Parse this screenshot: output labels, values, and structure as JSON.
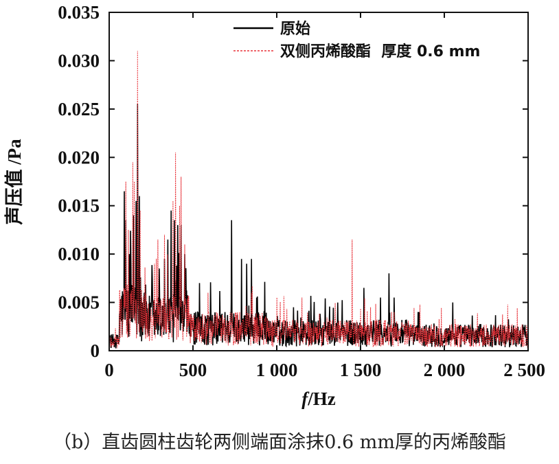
{
  "caption": "（b）直齿圆柱齿轮两侧端面涂抹0.6 mm厚的丙烯酸酯",
  "chart_data": {
    "type": "line",
    "xlabel_italic": "f",
    "xlabel_rest": "/Hz",
    "ylabel": "声压值 /Pa",
    "xlim": [
      0,
      2500
    ],
    "ylim": [
      0,
      0.035
    ],
    "x_ticks": [
      0,
      500,
      1000,
      1500,
      2000,
      2500
    ],
    "x_tick_labels": [
      "0",
      "500",
      "1 000",
      "1 500",
      "2 000",
      "2 500"
    ],
    "y_ticks": [
      0,
      0.005,
      0.01,
      0.015,
      0.02,
      0.025,
      0.03,
      0.035
    ],
    "y_tick_labels": [
      "0",
      "0.005",
      "0.010",
      "0.015",
      "0.020",
      "0.025",
      "0.030",
      "0.035"
    ],
    "legend_position": "top-right",
    "series": [
      {
        "name": "原始",
        "color": "#000000",
        "style": "solid",
        "peaks": [
          [
            90,
            0.0165
          ],
          [
            100,
            0.0135
          ],
          [
            120,
            0.01
          ],
          [
            145,
            0.014
          ],
          [
            160,
            0.0155
          ],
          [
            170,
            0.0255
          ],
          [
            180,
            0.016
          ],
          [
            210,
            0.006
          ],
          [
            300,
            0.0085
          ],
          [
            330,
            0.0095
          ],
          [
            350,
            0.0115
          ],
          [
            370,
            0.0145
          ],
          [
            390,
            0.0135
          ],
          [
            410,
            0.013
          ],
          [
            430,
            0.013
          ],
          [
            450,
            0.01
          ],
          [
            540,
            0.007
          ],
          [
            690,
            0.004
          ],
          [
            730,
            0.0135
          ],
          [
            790,
            0.0095
          ],
          [
            820,
            0.009
          ],
          [
            850,
            0.0095
          ],
          [
            880,
            0.0055
          ],
          [
            1100,
            0.0045
          ],
          [
            1520,
            0.0065
          ],
          [
            1620,
            0.0055
          ],
          [
            1670,
            0.008
          ],
          [
            1700,
            0.0055
          ],
          [
            1850,
            0.004
          ],
          [
            2050,
            0.005
          ]
        ]
      },
      {
        "name": "双侧丙烯酸酯  厚度 0.6 mm",
        "color": "#e8333a",
        "style": "dashed",
        "peaks": [
          [
            100,
            0.0175
          ],
          [
            115,
            0.0125
          ],
          [
            140,
            0.0195
          ],
          [
            150,
            0.0175
          ],
          [
            170,
            0.031
          ],
          [
            185,
            0.0145
          ],
          [
            270,
            0.009
          ],
          [
            290,
            0.0115
          ],
          [
            330,
            0.012
          ],
          [
            380,
            0.0155
          ],
          [
            395,
            0.0205
          ],
          [
            420,
            0.015
          ],
          [
            430,
            0.018
          ],
          [
            450,
            0.011
          ],
          [
            590,
            0.006
          ],
          [
            850,
            0.006
          ],
          [
            1000,
            0.0055
          ],
          [
            1150,
            0.0055
          ],
          [
            1450,
            0.0115
          ],
          [
            1560,
            0.0045
          ],
          [
            1700,
            0.004
          ]
        ]
      }
    ]
  }
}
